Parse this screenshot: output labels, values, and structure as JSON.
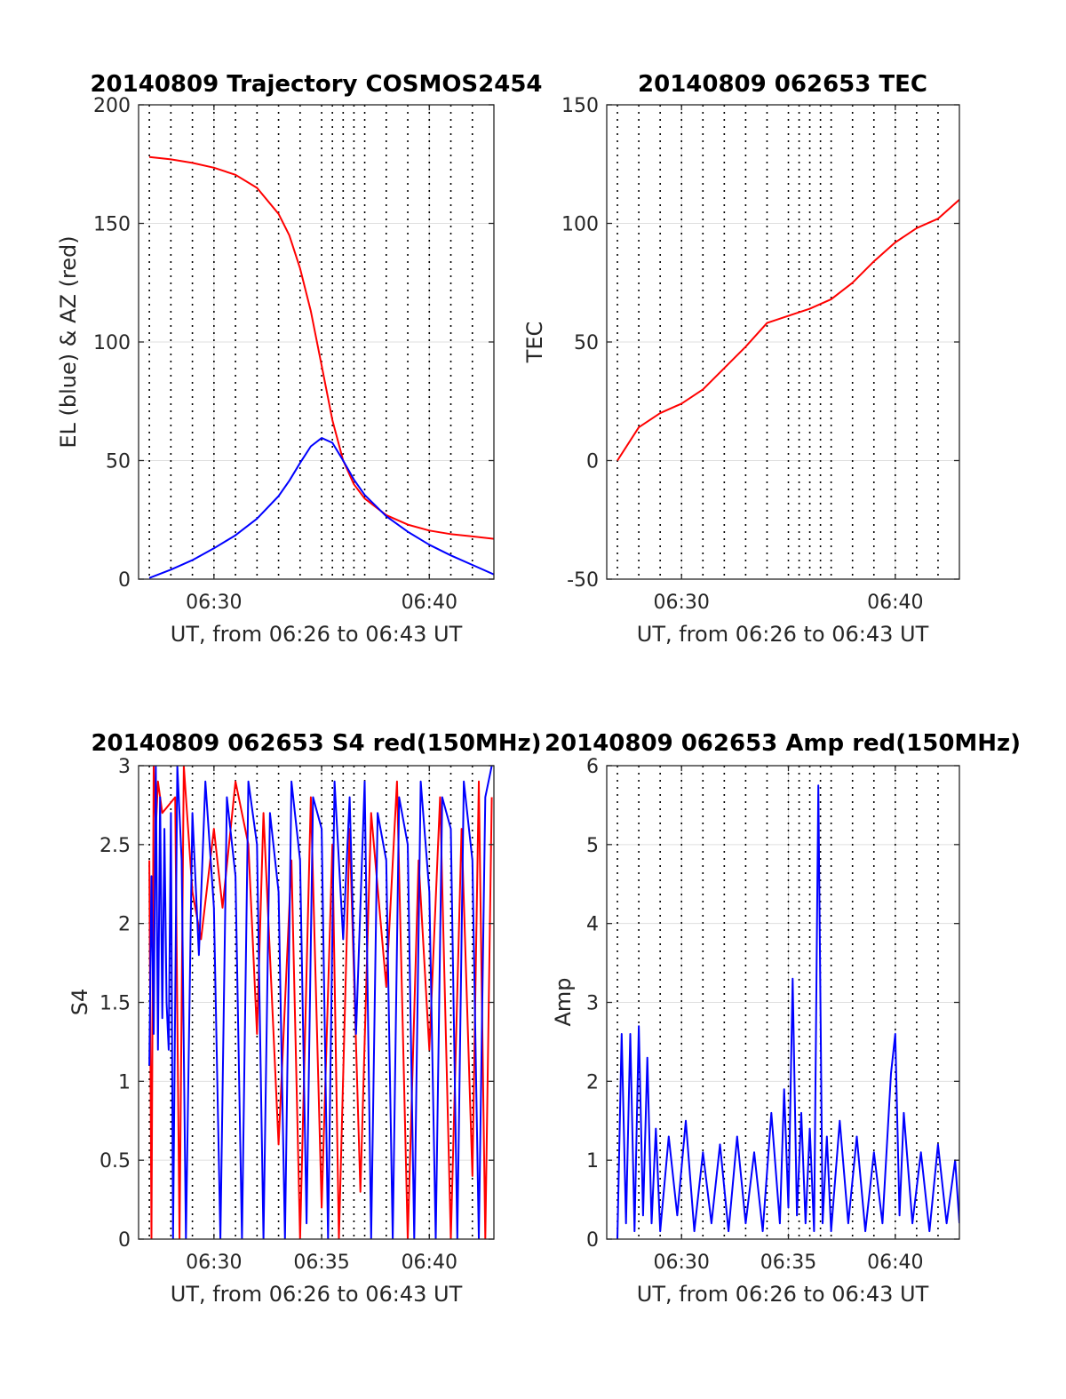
{
  "chart_data": [
    {
      "id": "p1",
      "type": "line",
      "title": "20140809 Trajectory COSMOS2454",
      "xlabel": "UT, from 06:26 to 06:43 UT",
      "ylabel": "EL (blue) & AZ (red)",
      "xlim": [
        26.5,
        43.0
      ],
      "ylim": [
        0,
        200
      ],
      "x_ticks": [
        {
          "v": 30,
          "label": "06:30"
        },
        {
          "v": 40,
          "label": "06:40"
        }
      ],
      "y_ticks": [
        {
          "v": 0,
          "label": "0"
        },
        {
          "v": 50,
          "label": "50"
        },
        {
          "v": 100,
          "label": "100"
        },
        {
          "v": 150,
          "label": "150"
        },
        {
          "v": 200,
          "label": "200"
        }
      ],
      "grid": true,
      "vlines": [
        27,
        28,
        29,
        30,
        31,
        32,
        33,
        34,
        35,
        35.5,
        36,
        36.5,
        37,
        38,
        39,
        40,
        41,
        42
      ],
      "series": [
        {
          "color": "#ff0000",
          "x": [
            27.0,
            28.0,
            29.0,
            30.0,
            31.0,
            32.0,
            33.0,
            33.5,
            34.0,
            34.5,
            35.0,
            35.5,
            36.0,
            36.5,
            37.0,
            38.0,
            39.0,
            40.0,
            41.0,
            42.0,
            43.0
          ],
          "y": [
            178,
            177,
            175.5,
            173.5,
            170.5,
            165,
            154,
            145,
            131,
            113,
            90,
            67,
            50,
            40,
            34,
            27,
            23,
            20.5,
            19,
            18,
            17
          ]
        },
        {
          "color": "#0000ff",
          "x": [
            27.0,
            28.0,
            29.0,
            30.0,
            31.0,
            32.0,
            33.0,
            33.5,
            34.0,
            34.5,
            35.0,
            35.5,
            36.0,
            36.5,
            37.0,
            38.0,
            39.0,
            40.0,
            41.0,
            42.0,
            43.0
          ],
          "y": [
            0.5,
            4,
            8,
            13,
            18.5,
            25.5,
            35,
            41.5,
            49,
            56,
            59.5,
            57.5,
            50,
            42,
            35.5,
            26.5,
            20,
            14.5,
            10,
            6,
            2
          ]
        }
      ]
    },
    {
      "id": "p2",
      "type": "line",
      "title": "20140809 062653 TEC",
      "xlabel": "UT, from 06:26 to 06:43 UT",
      "ylabel": "TEC",
      "xlim": [
        26.5,
        43.0
      ],
      "ylim": [
        -50,
        150
      ],
      "x_ticks": [
        {
          "v": 30,
          "label": "06:30"
        },
        {
          "v": 40,
          "label": "06:40"
        }
      ],
      "y_ticks": [
        {
          "v": -50,
          "label": "-50"
        },
        {
          "v": 0,
          "label": "0"
        },
        {
          "v": 50,
          "label": "50"
        },
        {
          "v": 100,
          "label": "100"
        },
        {
          "v": 150,
          "label": "150"
        }
      ],
      "grid": true,
      "vlines": [
        27,
        28,
        29,
        30,
        31,
        32,
        33,
        34,
        35,
        35.5,
        36,
        36.5,
        37,
        38,
        39,
        40,
        41,
        42
      ],
      "series": [
        {
          "color": "#ff0000",
          "x": [
            27.0,
            28.0,
            29.0,
            30.0,
            31.0,
            32.0,
            33.0,
            34.0,
            35.0,
            36.0,
            37.0,
            38.0,
            39.0,
            40.0,
            41.0,
            42.0,
            43.0
          ],
          "y": [
            0,
            14,
            20,
            24,
            30,
            39,
            48,
            58,
            61,
            64,
            68,
            75,
            84,
            92,
            98,
            102,
            110
          ]
        }
      ]
    },
    {
      "id": "p3",
      "type": "line",
      "title": "20140809 062653 S4 red(150MHz)",
      "xlabel": "UT, from 06:26 to 06:43 UT",
      "ylabel": "S4",
      "xlim": [
        26.5,
        43.0
      ],
      "ylim": [
        0,
        3
      ],
      "x_ticks": [
        {
          "v": 30,
          "label": "06:30"
        },
        {
          "v": 35,
          "label": "06:35"
        },
        {
          "v": 40,
          "label": "06:40"
        }
      ],
      "y_ticks": [
        {
          "v": 0,
          "label": "0"
        },
        {
          "v": 0.5,
          "label": "0.5"
        },
        {
          "v": 1,
          "label": "1"
        },
        {
          "v": 1.5,
          "label": "1.5"
        },
        {
          "v": 2,
          "label": "2"
        },
        {
          "v": 2.5,
          "label": "2.5"
        },
        {
          "v": 3,
          "label": "3"
        }
      ],
      "grid": true,
      "vlines": [
        27,
        28,
        29,
        30,
        31,
        32,
        33,
        34,
        35,
        35.5,
        36,
        36.5,
        37,
        38,
        39,
        40,
        41,
        42
      ],
      "series": [
        {
          "color": "#ff0000",
          "x": [
            27.0,
            27.1,
            27.2,
            27.3,
            27.4,
            27.6,
            28.2,
            28.4,
            28.6,
            29.0,
            29.4,
            30.0,
            30.4,
            31.0,
            31.6,
            32.0,
            32.3,
            33.0,
            33.6,
            34.0,
            34.5,
            35.0,
            35.5,
            35.8,
            36.3,
            36.8,
            37.3,
            38.0,
            38.5,
            39.0,
            39.5,
            40.0,
            40.5,
            41.0,
            41.5,
            42.0,
            42.3,
            42.6,
            42.9
          ],
          "y": [
            2.4,
            0,
            3,
            2.6,
            2.9,
            2.7,
            2.8,
            0,
            3,
            2.2,
            1.9,
            2.6,
            2.1,
            2.9,
            2.5,
            1.3,
            2.7,
            0.6,
            2.4,
            0,
            2.8,
            0.2,
            2.5,
            0,
            2.6,
            0.3,
            2.7,
            1.6,
            2.9,
            0,
            2.4,
            1.2,
            2.8,
            0,
            2.6,
            0.4,
            2.9,
            0,
            2.8
          ]
        },
        {
          "color": "#0000ff",
          "x": [
            27.0,
            27.1,
            27.2,
            27.3,
            27.4,
            27.5,
            27.6,
            27.7,
            27.8,
            27.9,
            28.0,
            28.1,
            28.3,
            28.5,
            28.7,
            29.0,
            29.3,
            29.6,
            30.0,
            30.3,
            30.6,
            31.0,
            31.3,
            31.6,
            32.0,
            32.3,
            32.6,
            33.0,
            33.3,
            33.6,
            34.0,
            34.3,
            34.6,
            35.0,
            35.3,
            35.6,
            36.0,
            36.3,
            36.6,
            37.0,
            37.3,
            37.6,
            38.0,
            38.3,
            38.6,
            39.0,
            39.3,
            39.6,
            40.0,
            40.3,
            40.6,
            41.0,
            41.3,
            41.6,
            42.0,
            42.3,
            42.6,
            42.9
          ],
          "y": [
            1.1,
            2.3,
            1.3,
            3,
            1.2,
            2.8,
            1.4,
            2.6,
            1.5,
            1.2,
            2.7,
            0,
            3,
            2.4,
            0,
            2.7,
            1.8,
            2.9,
            2.1,
            0,
            2.8,
            2.3,
            0,
            2.9,
            2.5,
            0,
            2.7,
            2.2,
            0,
            2.9,
            2.4,
            0.1,
            2.8,
            2.6,
            0,
            2.9,
            1.9,
            2.8,
            1.3,
            2.9,
            0,
            2.7,
            2.4,
            0,
            2.8,
            2.5,
            0,
            2.9,
            2.2,
            0,
            2.8,
            2.6,
            0,
            2.9,
            2.4,
            0,
            2.8,
            3
          ]
        }
      ]
    },
    {
      "id": "p4",
      "type": "line",
      "title": "20140809 062653 Amp red(150MHz)",
      "xlabel": "UT, from 06:26 to 06:43 UT",
      "ylabel": "Amp",
      "xlim": [
        26.5,
        43.0
      ],
      "ylim": [
        0,
        6
      ],
      "x_ticks": [
        {
          "v": 30,
          "label": "06:30"
        },
        {
          "v": 35,
          "label": "06:35"
        },
        {
          "v": 40,
          "label": "06:40"
        }
      ],
      "y_ticks": [
        {
          "v": 0,
          "label": "0"
        },
        {
          "v": 1,
          "label": "1"
        },
        {
          "v": 2,
          "label": "2"
        },
        {
          "v": 3,
          "label": "3"
        },
        {
          "v": 4,
          "label": "4"
        },
        {
          "v": 5,
          "label": "5"
        },
        {
          "v": 6,
          "label": "6"
        }
      ],
      "grid": true,
      "vlines": [
        27,
        28,
        29,
        30,
        31,
        32,
        33,
        34,
        35,
        35.5,
        36,
        36.5,
        37,
        38,
        39,
        40,
        41,
        42
      ],
      "series": [
        {
          "color": "#0000ff",
          "x": [
            27.0,
            27.2,
            27.4,
            27.6,
            27.8,
            28.0,
            28.2,
            28.4,
            28.6,
            28.8,
            29.0,
            29.4,
            29.8,
            30.2,
            30.6,
            31.0,
            31.4,
            31.8,
            32.2,
            32.6,
            33.0,
            33.4,
            33.8,
            34.2,
            34.6,
            34.8,
            35.0,
            35.2,
            35.4,
            35.6,
            35.8,
            36.0,
            36.2,
            36.4,
            36.6,
            36.8,
            37.0,
            37.4,
            37.8,
            38.2,
            38.6,
            39.0,
            39.4,
            39.8,
            40.0,
            40.2,
            40.4,
            40.8,
            41.2,
            41.6,
            42.0,
            42.4,
            42.8,
            43.0
          ],
          "y": [
            0,
            2.6,
            0.2,
            2.6,
            0.1,
            2.7,
            0.3,
            2.3,
            0.2,
            1.4,
            0.1,
            1.3,
            0.3,
            1.5,
            0.1,
            1.1,
            0.2,
            1.2,
            0.1,
            1.3,
            0.2,
            1.1,
            0.1,
            1.6,
            0.2,
            1.9,
            0.4,
            3.3,
            0.3,
            1.6,
            0.2,
            1.4,
            0.1,
            5.75,
            0.2,
            1.3,
            0.1,
            1.5,
            0.2,
            1.3,
            0.1,
            1.1,
            0.2,
            2.1,
            2.6,
            0.3,
            1.6,
            0.2,
            1.1,
            0.1,
            1.2,
            0.2,
            1.0,
            0.2
          ]
        }
      ]
    }
  ]
}
